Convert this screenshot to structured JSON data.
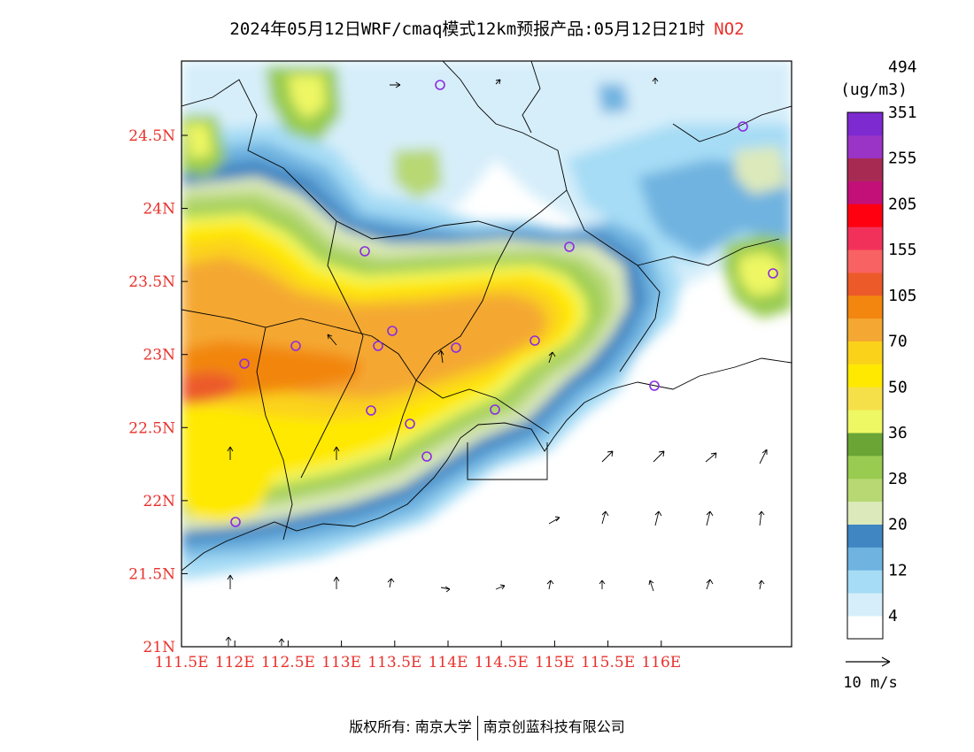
{
  "title": {
    "main": "2024年05月12日WRF/cmaq模式12km预报产品:05月12日21时",
    "pollutant": "NO2"
  },
  "map": {
    "lat_ticks": [
      "24.5N",
      "24N",
      "23.5N",
      "23N",
      "22.5N",
      "22N",
      "21.5N",
      "21N"
    ],
    "lon_ticks": [
      "111.5E",
      "112E",
      "112.5E",
      "113E",
      "113.5E",
      "114E",
      "114.5E",
      "115E",
      "115.5E",
      "116E"
    ],
    "label_color": "#e8312c"
  },
  "colorbar": {
    "unit": "(ug/m3)",
    "bins": [
      {
        "color": "#ffffff"
      },
      {
        "color": "#d6eefa"
      },
      {
        "color": "#a6dcf5"
      },
      {
        "color": "#6fb3e0"
      },
      {
        "color": "#3f86c2"
      },
      {
        "color": "#dce9bb"
      },
      {
        "color": "#b7d873"
      },
      {
        "color": "#98cb50"
      },
      {
        "color": "#6aa536"
      },
      {
        "color": "#eef764"
      },
      {
        "color": "#f6e04a"
      },
      {
        "color": "#ffe900"
      },
      {
        "color": "#fbd21a"
      },
      {
        "color": "#f4a833"
      },
      {
        "color": "#f2860f"
      },
      {
        "color": "#ec5a2a"
      },
      {
        "color": "#f96262"
      },
      {
        "color": "#f2315a"
      },
      {
        "color": "#ff0010"
      },
      {
        "color": "#c21078"
      },
      {
        "color": "#a72a52"
      },
      {
        "color": "#9a34c6"
      },
      {
        "color": "#7d2ad1"
      }
    ],
    "labels": [
      "4",
      "12",
      "20",
      "28",
      "36",
      "50",
      "70",
      "105",
      "155",
      "205",
      "255",
      "351",
      "494"
    ]
  },
  "wind": {
    "reference_label": "10 m/s"
  },
  "copyright": {
    "prefix": "版权所有:",
    "org1": "南京大学",
    "org2": "南京创蓝科技有限公司"
  }
}
